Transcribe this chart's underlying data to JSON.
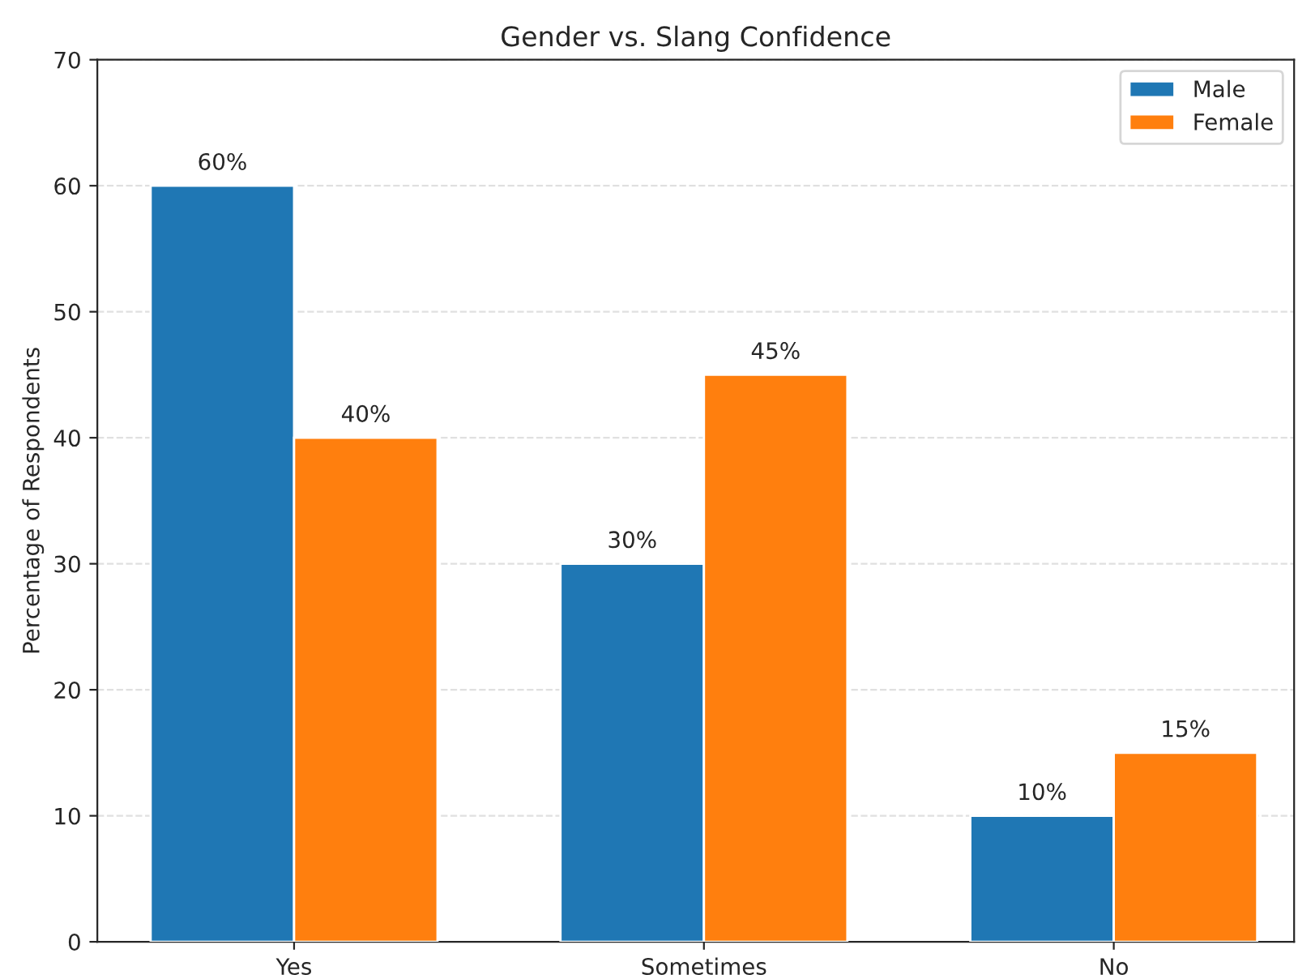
{
  "chart_data": {
    "type": "bar",
    "title": "Gender vs. Slang Confidence",
    "ylabel": "Percentage of Respondents",
    "categories": [
      "Yes",
      "Sometimes",
      "No"
    ],
    "series": [
      {
        "name": "Male",
        "color": "#1f77b4",
        "values": [
          60,
          30,
          10
        ],
        "value_labels": [
          "60%",
          "30%",
          "10%"
        ]
      },
      {
        "name": "Female",
        "color": "#ff7f0e",
        "values": [
          40,
          45,
          15
        ],
        "value_labels": [
          "40%",
          "45%",
          "15%"
        ]
      }
    ],
    "ylim": [
      0,
      70
    ],
    "yticks": [
      0,
      10,
      20,
      30,
      40,
      50,
      60,
      70
    ],
    "grid": "y",
    "legend": "top right"
  }
}
